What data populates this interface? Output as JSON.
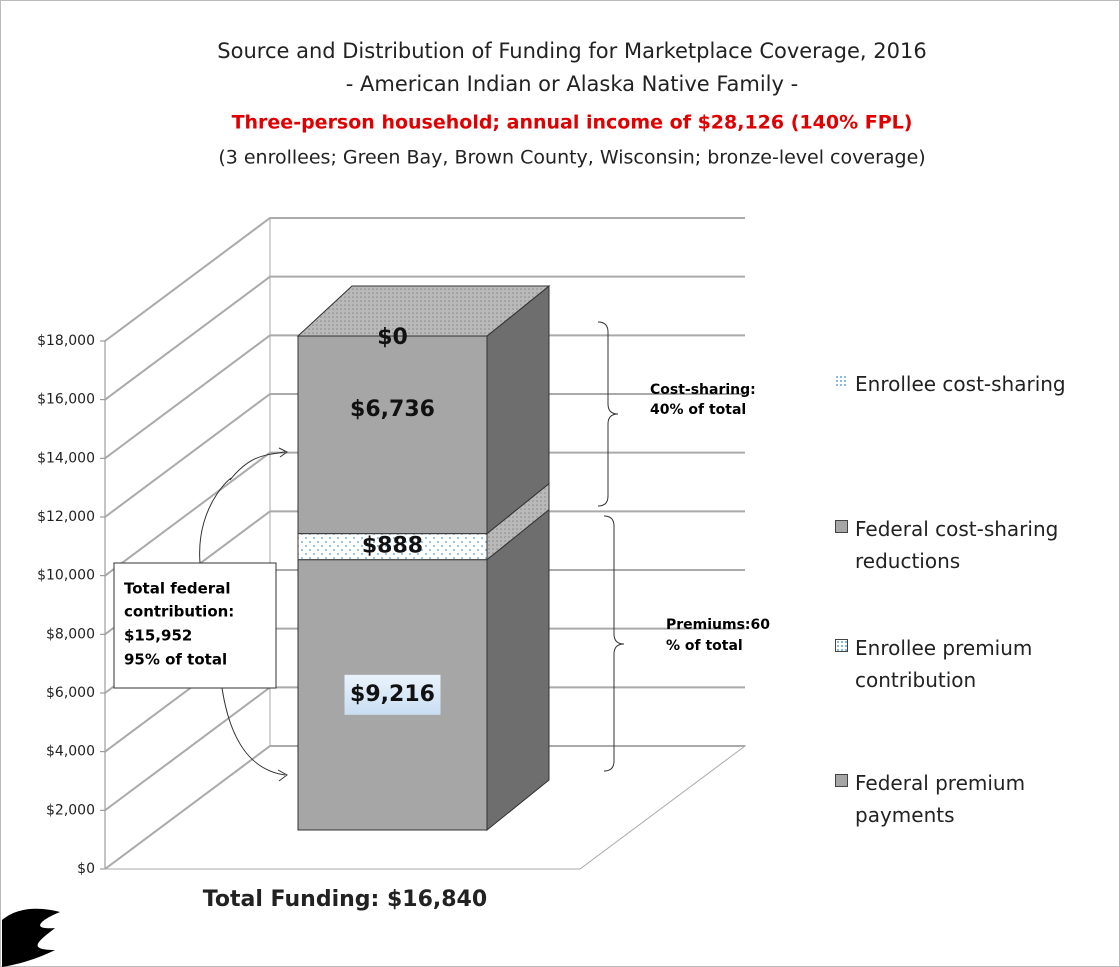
{
  "chart_data": {
    "type": "bar3d_stacked",
    "title": "Source and Distribution of Funding for Marketplace Coverage, 2016",
    "subtitle": "- American Indian or Alaska Native Family -",
    "highlight": "Three-person household; annual income of $28,126 (140% FPL)",
    "note": "(3 enrollees; Green Bay, Brown County, Wisconsin; bronze-level coverage)",
    "x_label": "Total Funding: $16,840",
    "categories": [
      null
    ],
    "series": [
      {
        "name": "Federal premium payments",
        "color": "#a6a6a6",
        "values": [
          9216
        ],
        "value_labels": [
          "$9,216"
        ]
      },
      {
        "name": "Enrollee premium contribution",
        "color": "#ffffff",
        "values": [
          888
        ],
        "value_labels": [
          "$888"
        ]
      },
      {
        "name": "Federal cost-sharing reductions",
        "color": "#a6a6a6",
        "values": [
          6736
        ],
        "value_labels": [
          "$6,736"
        ]
      },
      {
        "name": "Enrollee cost-sharing",
        "color": "#ffffff",
        "values": [
          0
        ],
        "value_labels": [
          "$0"
        ]
      }
    ],
    "ylim": [
      0,
      18000
    ],
    "yticks": [
      {
        "value": 0,
        "label": "$0"
      },
      {
        "value": 2000,
        "label": "$2,000"
      },
      {
        "value": 4000,
        "label": "$4,000"
      },
      {
        "value": 6000,
        "label": "$6,000"
      },
      {
        "value": 8000,
        "label": "$8,000"
      },
      {
        "value": 10000,
        "label": "$10,000"
      },
      {
        "value": 12000,
        "label": "$12,000"
      },
      {
        "value": 14000,
        "label": "$14,000"
      },
      {
        "value": 16000,
        "label": "$16,000"
      },
      {
        "value": 18000,
        "label": "$18,000"
      }
    ],
    "grid": true,
    "annotations": {
      "cost_sharing": [
        "Cost-sharing:",
        "40% of total"
      ],
      "premiums": [
        "Premiums:60",
        "% of total"
      ],
      "federal": [
        "Total federal",
        "contribution:",
        "$15,952",
        "95% of total"
      ]
    }
  }
}
